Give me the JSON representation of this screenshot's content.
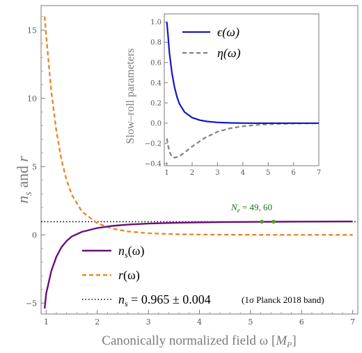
{
  "chart_data": [
    {
      "type": "line",
      "xlabel": "Canonically normalized field ω [M_P]",
      "xlabel_parts": {
        "text": "Canonically normalized field ω [",
        "var": "M",
        "sub": "P",
        "close": "]"
      },
      "ylabel": "n_s and r",
      "ylabel_parts": {
        "n": "n",
        "s": "s",
        "and": " and ",
        "r": "r"
      },
      "xlim": [
        0.9,
        7.1
      ],
      "ylim": [
        -5.8,
        16.8
      ],
      "x_ticks": [
        "1",
        "2",
        "3",
        "4",
        "5",
        "6",
        "7"
      ],
      "y_ticks": [
        "−5",
        "0",
        "5",
        "10",
        "15"
      ],
      "grid": false,
      "legend_position": "lower-left",
      "series": [
        {
          "name": "n_s(ω)",
          "label_parts": {
            "main": "n",
            "sub": "s",
            "rest": "(ω)"
          },
          "color": "#6a0f7a",
          "style": "solid",
          "x": [
            0.97,
            1.0,
            1.1,
            1.2,
            1.3,
            1.4,
            1.5,
            1.7,
            2.0,
            2.3,
            2.6,
            3.0,
            3.5,
            4.0,
            4.5,
            5.0,
            5.5,
            6.0,
            6.5,
            7.0
          ],
          "y": [
            -5.4,
            -4.3,
            -2.65,
            -1.6,
            -0.9,
            -0.45,
            -0.12,
            0.22,
            0.5,
            0.66,
            0.75,
            0.83,
            0.88,
            0.915,
            0.935,
            0.95,
            0.96,
            0.97,
            0.975,
            0.98
          ]
        },
        {
          "name": "r(ω)",
          "label_parts": {
            "main": "r",
            "rest": "(ω)"
          },
          "color": "#e8872a",
          "style": "dashed",
          "x": [
            0.97,
            1.0,
            1.1,
            1.2,
            1.3,
            1.4,
            1.5,
            1.7,
            2.0,
            2.3,
            2.6,
            3.0,
            3.5,
            4.0,
            4.5,
            5.0,
            5.5,
            6.0,
            7.0
          ],
          "y": [
            16.0,
            14.6,
            10.5,
            7.6,
            5.5,
            4.0,
            2.95,
            1.7,
            0.85,
            0.45,
            0.25,
            0.12,
            0.05,
            0.02,
            0.01,
            0.005,
            0.0,
            0.0,
            0.0
          ]
        },
        {
          "name": "n_s = 0.965 ± 0.004 (1σ Planck 2018 band)",
          "label_parts": {
            "main": "n",
            "sub": "s",
            "rest": " = 0.965 ± 0.004",
            "note": "(1σ Planck 2018 band)"
          },
          "color": "#000000",
          "style": "dotted",
          "x": [
            0.9,
            7.1
          ],
          "y": [
            0.965,
            0.965
          ]
        }
      ],
      "markers": {
        "color": "#5a9a1e",
        "x": [
          5.22,
          5.45
        ],
        "y": [
          0.962,
          0.965
        ]
      },
      "annotation": {
        "main": "N",
        "sub": "e",
        "rest": " = 49, 60"
      }
    },
    {
      "type": "line",
      "ylabel": "Slow–roll parameters",
      "xlim": [
        0.9,
        7.0
      ],
      "ylim": [
        -0.42,
        1.08
      ],
      "x_ticks": [
        "1",
        "2",
        "3",
        "4",
        "5",
        "6",
        "7"
      ],
      "y_ticks": [
        "−0.4",
        "−0.2",
        "0.0",
        "0.2",
        "0.4",
        "0.6",
        "0.8",
        "1.0"
      ],
      "legend_position": "top-left",
      "series": [
        {
          "name": "ϵ(ω)",
          "color": "#1414c8",
          "style": "solid",
          "x": [
            1.0,
            1.05,
            1.1,
            1.2,
            1.3,
            1.4,
            1.5,
            1.7,
            2.0,
            2.3,
            2.6,
            3.0,
            3.5,
            4.0,
            4.5,
            5.0,
            6.0,
            7.0
          ],
          "y": [
            1.0,
            0.86,
            0.7,
            0.5,
            0.36,
            0.26,
            0.19,
            0.11,
            0.055,
            0.03,
            0.017,
            0.008,
            0.003,
            0.001,
            0.0,
            0.0,
            0.0,
            0.0
          ]
        },
        {
          "name": "η(ω)",
          "color": "#808080",
          "style": "dashed",
          "x": [
            1.0,
            1.05,
            1.1,
            1.2,
            1.3,
            1.4,
            1.5,
            1.7,
            2.0,
            2.5,
            3.0,
            3.5,
            4.0,
            4.5,
            5.0,
            5.5,
            6.0,
            7.0
          ],
          "y": [
            -0.15,
            -0.22,
            -0.28,
            -0.33,
            -0.34,
            -0.335,
            -0.325,
            -0.29,
            -0.23,
            -0.145,
            -0.085,
            -0.05,
            -0.03,
            -0.018,
            -0.01,
            -0.006,
            -0.003,
            -0.001
          ]
        }
      ]
    }
  ]
}
